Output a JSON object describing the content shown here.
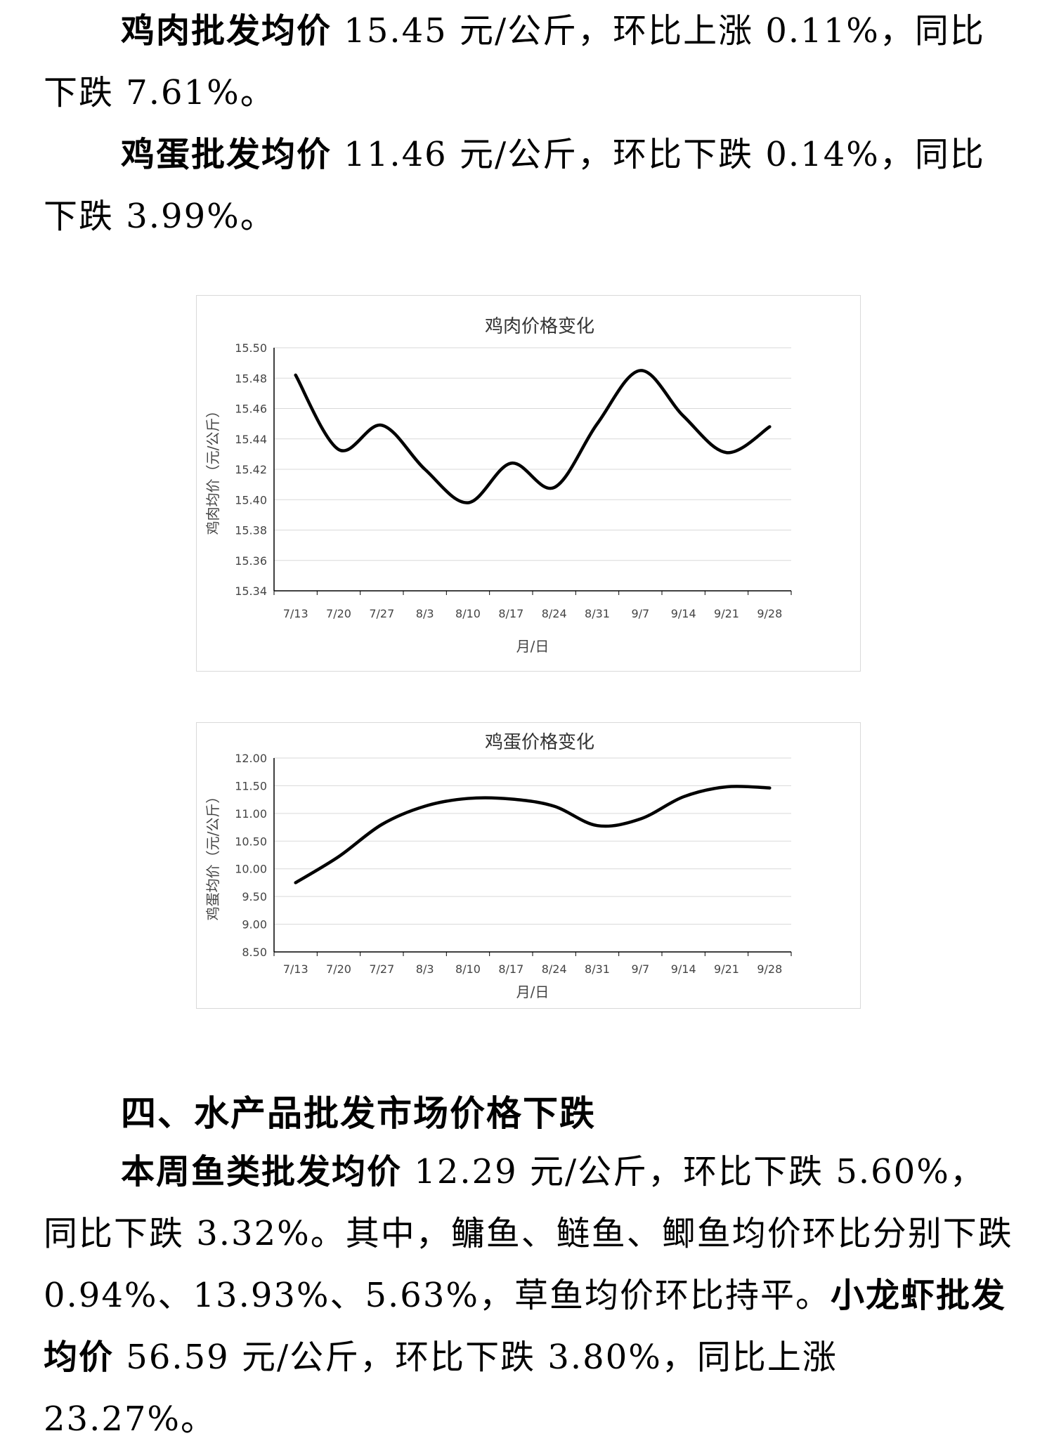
{
  "paragraphs": {
    "chicken": {
      "bold": "鸡肉批发均价",
      "text": " 15.45 元/公斤，环比上涨 0.11%，同比下跌 7.61%。"
    },
    "egg": {
      "bold": "鸡蛋批发均价",
      "text": " 11.46 元/公斤，环比下跌 0.14%，同比下跌 3.99%。"
    },
    "fish": {
      "bold": "本周鱼类批发均价",
      "text": " 12.29 元/公斤，环比下跌 5.60%，同比下跌 3.32%。其中，鳙鱼、鲢鱼、鲫鱼均价环比分别下跌 0.94%、13.93%、5.63%，草鱼均价环比持平。",
      "bold2": "小龙虾批发均价",
      "text2": " 56.59 元/公斤，环比下跌 3.80%，同比上涨 23.27%。"
    }
  },
  "section_heading": "四、水产品批发市场价格下跌",
  "chart_data": [
    {
      "type": "line",
      "title": "鸡肉价格变化",
      "xlabel": "月/日",
      "ylabel": "鸡肉均价（元/公斤）",
      "categories": [
        "7/13",
        "7/20",
        "7/27",
        "8/3",
        "8/10",
        "8/17",
        "8/24",
        "8/31",
        "9/7",
        "9/14",
        "9/21",
        "9/28"
      ],
      "values": [
        15.482,
        15.433,
        15.449,
        15.42,
        15.398,
        15.424,
        15.408,
        15.45,
        15.485,
        15.455,
        15.431,
        15.448
      ],
      "ylim": [
        15.34,
        15.5
      ],
      "yticks": [
        "15.34",
        "15.36",
        "15.38",
        "15.40",
        "15.42",
        "15.44",
        "15.46",
        "15.48",
        "15.50"
      ],
      "grid": true,
      "line_color": "#000000"
    },
    {
      "type": "line",
      "title": "鸡蛋价格变化",
      "xlabel": "月/日",
      "ylabel": "鸡蛋均价（元/公斤）",
      "categories": [
        "7/13",
        "7/20",
        "7/27",
        "8/3",
        "8/10",
        "8/17",
        "8/24",
        "8/31",
        "9/7",
        "9/14",
        "9/21",
        "9/28"
      ],
      "values": [
        9.75,
        10.22,
        10.8,
        11.13,
        11.27,
        11.26,
        11.13,
        10.78,
        10.9,
        11.3,
        11.48,
        11.46
      ],
      "ylim": [
        8.5,
        12.0
      ],
      "yticks": [
        "8.50",
        "9.00",
        "9.50",
        "10.00",
        "10.50",
        "11.00",
        "11.50",
        "12.00"
      ],
      "grid": true,
      "line_color": "#000000"
    }
  ]
}
